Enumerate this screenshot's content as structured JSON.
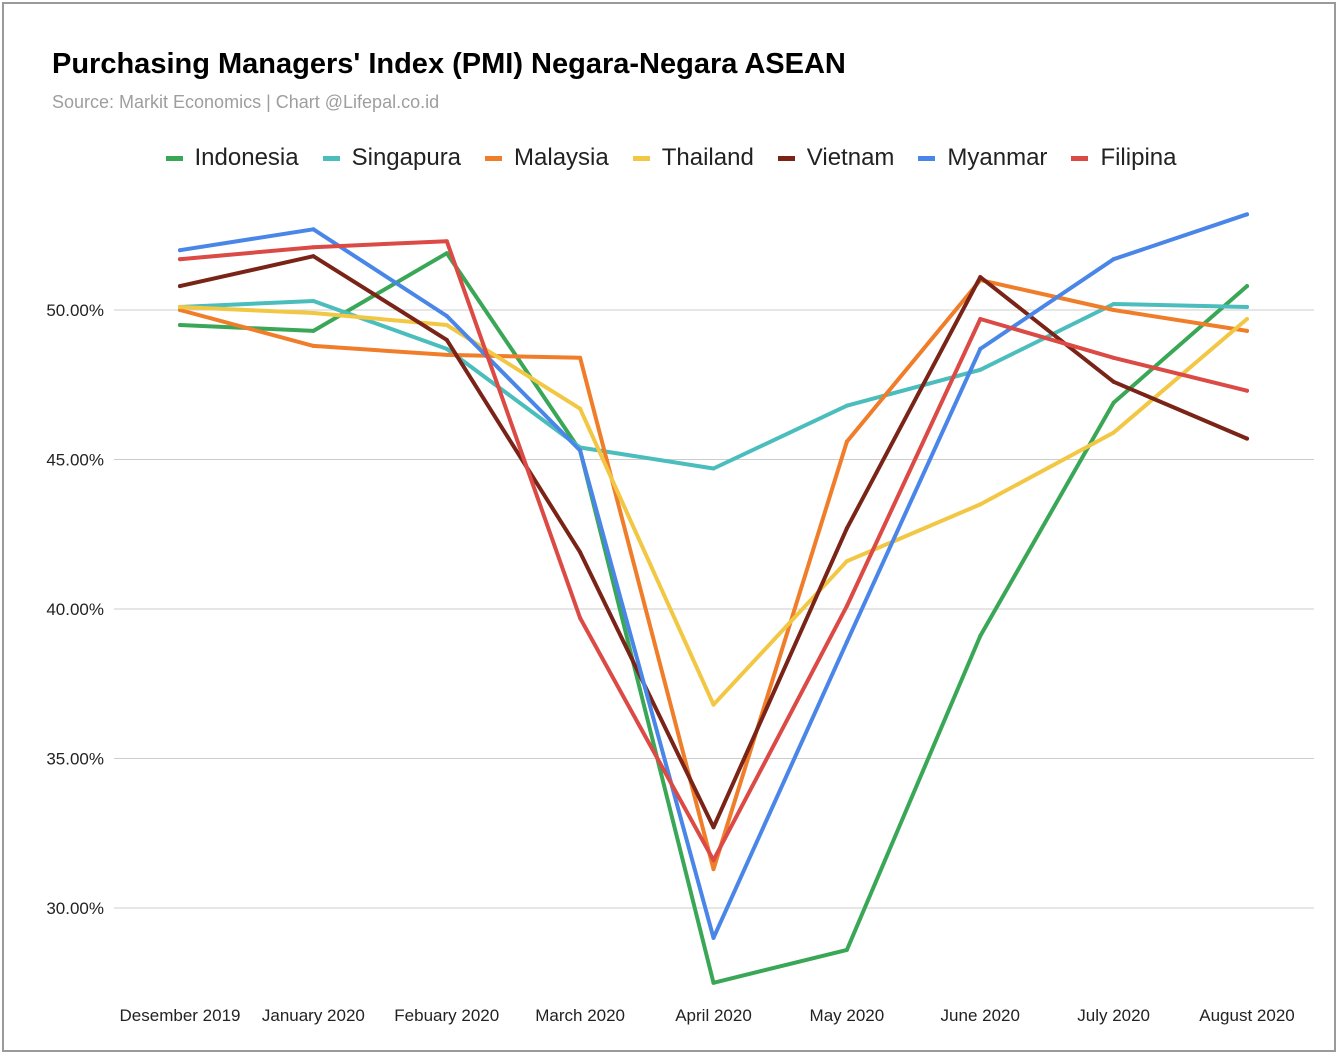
{
  "chart_data": {
    "type": "line",
    "title": "Purchasing Managers' Index (PMI) Negara-Negara ASEAN",
    "subtitle": "Source: Markit Economics | Chart @Lifepal.co.id",
    "xlabel": "",
    "ylabel": "",
    "categories": [
      "Desember 2019",
      "January 2020",
      "Febuary 2020",
      "March 2020",
      "April 2020",
      "May 2020",
      "June 2020",
      "July 2020",
      "August 2020"
    ],
    "yticks": [
      30,
      35,
      40,
      45,
      50
    ],
    "ytick_labels": [
      "30.00%",
      "35.00%",
      "40.00%",
      "45.00%",
      "50.00%"
    ],
    "ylim": [
      27,
      54.5
    ],
    "grid": true,
    "legend_position": "top",
    "series": [
      {
        "name": "Indonesia",
        "color": "#3aa757",
        "values": [
          49.5,
          49.3,
          51.9,
          45.3,
          27.5,
          28.6,
          39.1,
          46.9,
          50.8
        ]
      },
      {
        "name": "Singapura",
        "color": "#4bbdbd",
        "values": [
          50.1,
          50.3,
          48.7,
          45.4,
          44.7,
          46.8,
          48.0,
          50.2,
          50.1
        ]
      },
      {
        "name": "Malaysia",
        "color": "#f07d2a",
        "values": [
          50.0,
          48.8,
          48.5,
          48.4,
          31.3,
          45.6,
          51.0,
          50.0,
          49.3
        ]
      },
      {
        "name": "Thailand",
        "color": "#f2c744",
        "values": [
          50.1,
          49.9,
          49.5,
          46.7,
          36.8,
          41.6,
          43.5,
          45.9,
          49.7
        ]
      },
      {
        "name": "Vietnam",
        "color": "#7a2418",
        "values": [
          50.8,
          51.8,
          49.0,
          41.9,
          32.7,
          42.7,
          51.1,
          47.6,
          45.7
        ]
      },
      {
        "name": "Myanmar",
        "color": "#4a86e8",
        "values": [
          52.0,
          52.7,
          49.8,
          45.3,
          29.0,
          38.9,
          48.7,
          51.7,
          53.2
        ]
      },
      {
        "name": "Filipina",
        "color": "#db4a45",
        "values": [
          51.7,
          52.1,
          52.3,
          39.7,
          31.6,
          40.1,
          49.7,
          48.4,
          47.3
        ]
      }
    ]
  }
}
